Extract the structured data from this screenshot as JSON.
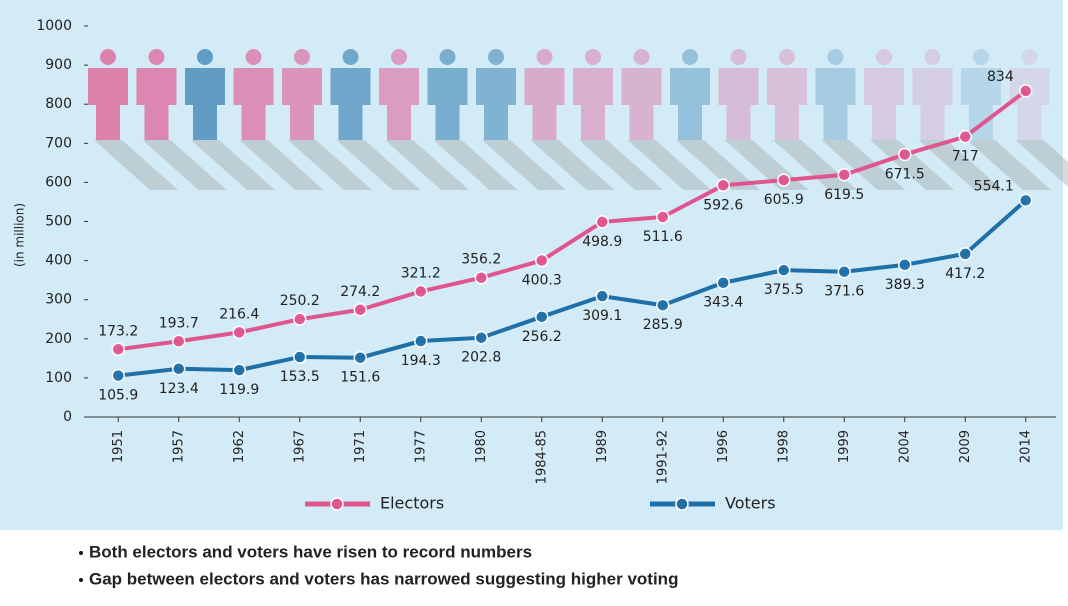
{
  "chart_data": {
    "type": "line",
    "y_label": "(in million)",
    "categories": [
      "1951",
      "1957",
      "1962",
      "1967",
      "1971",
      "1977",
      "1980",
      "1984-85",
      "1989",
      "1991-92",
      "1996",
      "1998",
      "1999",
      "2004",
      "2009",
      "2014"
    ],
    "series": [
      {
        "name": "Electors",
        "color": "#e0558f",
        "values": [
          173.2,
          193.7,
          216.4,
          250.2,
          274.2,
          321.2,
          356.2,
          400.3,
          498.9,
          511.6,
          592.6,
          605.9,
          619.5,
          671.5,
          717,
          834
        ]
      },
      {
        "name": "Voters",
        "color": "#1f6fa8",
        "values": [
          105.9,
          123.4,
          119.9,
          153.5,
          151.6,
          194.3,
          202.8,
          256.2,
          309.1,
          285.9,
          343.4,
          375.5,
          371.6,
          389.3,
          417.2,
          554.1
        ]
      }
    ],
    "ylim": [
      0,
      1000
    ],
    "yticks": [
      0,
      100,
      200,
      300,
      400,
      500,
      600,
      700,
      800,
      900,
      1000
    ],
    "grid": false
  },
  "notes": [
    "Both electors and voters have risen to record numbers",
    "Gap between electors and voters has narrowed suggesting higher  voting"
  ]
}
